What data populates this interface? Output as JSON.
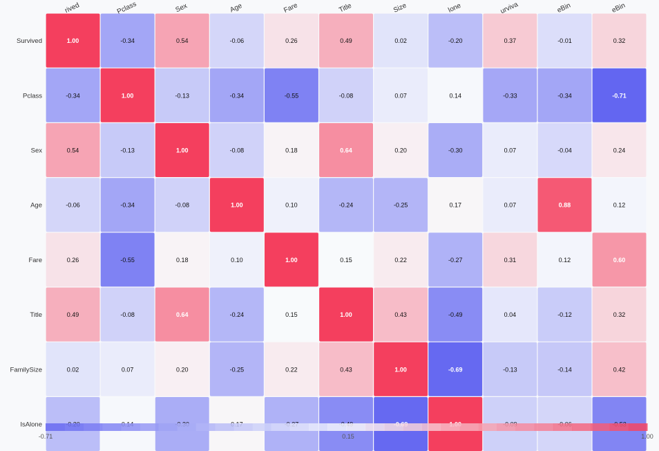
{
  "chart_data": {
    "type": "heatmap",
    "title": "",
    "columns": [
      "Survived",
      "Pclass",
      "Sex",
      "Age",
      "Fare",
      "Title",
      "FamilySize",
      "IsAlone",
      "Survival",
      "AgeBin",
      "FareBin"
    ],
    "column_labels_visible": [
      "rived",
      "Pclass",
      "Sex",
      "Age",
      "Fare",
      "Title",
      "Size",
      "lone",
      "urviva",
      "eBin",
      "eBin"
    ],
    "rows": [
      "Survived",
      "Pclass",
      "Sex",
      "Age",
      "Fare",
      "Title",
      "FamilySize",
      "IsAlone"
    ],
    "values": [
      [
        1.0,
        -0.34,
        0.54,
        -0.06,
        0.26,
        0.49,
        0.02,
        -0.2,
        0.37,
        -0.01,
        0.32
      ],
      [
        -0.34,
        1.0,
        -0.13,
        -0.34,
        -0.55,
        -0.08,
        0.07,
        0.14,
        -0.33,
        -0.34,
        -0.71
      ],
      [
        0.54,
        -0.13,
        1.0,
        -0.08,
        0.18,
        0.64,
        0.2,
        -0.3,
        0.07,
        -0.04,
        0.24
      ],
      [
        -0.06,
        -0.34,
        -0.08,
        1.0,
        0.1,
        -0.24,
        -0.25,
        0.17,
        0.07,
        0.88,
        0.12
      ],
      [
        0.26,
        -0.55,
        0.18,
        0.1,
        1.0,
        0.15,
        0.22,
        -0.27,
        0.31,
        0.12,
        0.6
      ],
      [
        0.49,
        -0.08,
        0.64,
        -0.24,
        0.15,
        1.0,
        0.43,
        -0.49,
        0.04,
        -0.12,
        0.32
      ],
      [
        0.02,
        0.07,
        0.2,
        -0.25,
        0.22,
        0.43,
        1.0,
        -0.69,
        -0.13,
        -0.14,
        0.42
      ],
      [
        -0.2,
        0.14,
        -0.3,
        0.17,
        -0.27,
        -0.49,
        -0.69,
        1.0,
        -0.09,
        -0.06,
        -0.53
      ]
    ],
    "value_labels": [
      [
        "1.00",
        "-0.34",
        "0.54",
        "-0.06",
        "0.26",
        "0.49",
        "0.02",
        "-0.20",
        "0.37",
        "-0.01",
        "0.32"
      ],
      [
        "-0.34",
        "1.00",
        "-0.13",
        "-0.34",
        "-0.55",
        "-0.08",
        "0.07",
        "0.14",
        "-0.33",
        "-0.34",
        "-0.71"
      ],
      [
        "0.54",
        "-0.13",
        "1.00",
        "-0.08",
        "0.18",
        "0.64",
        "0.20",
        "-0.30",
        "0.07",
        "-0.04",
        "0.24"
      ],
      [
        "-0.06",
        "-0.34",
        "-0.08",
        "1.00",
        "0.10",
        "-0.24",
        "-0.25",
        "0.17",
        "0.07",
        "0.88",
        "0.12"
      ],
      [
        "0.26",
        "-0.55",
        "0.18",
        "0.10",
        "1.00",
        "0.15",
        "0.22",
        "-0.27",
        "0.31",
        "0.12",
        "0.60"
      ],
      [
        "0.49",
        "-0.08",
        "0.64",
        "-0.24",
        "0.15",
        "1.00",
        "0.43",
        "-0.49",
        "0.04",
        "-0.12",
        "0.32"
      ],
      [
        "0.02",
        "0.07",
        "0.20",
        "-0.25",
        "0.22",
        "0.43",
        "1.00",
        "-0.69",
        "-0.13",
        "-0.14",
        "0.42"
      ],
      [
        "-0.20",
        "0.14",
        "-0.30",
        "0.17",
        "-0.27",
        "-0.49",
        "-0.69",
        "1.00",
        "-0.09",
        "-0.06",
        "-0.53"
      ]
    ],
    "colorscale": {
      "min": -0.71,
      "mid": 0.15,
      "max": 1.0,
      "low_color": "#6366f1",
      "mid_color": "#f8fafc",
      "high_color": "#f43f5e"
    },
    "colorbar_ticks": [
      "-0.71",
      "0.15",
      "1.00"
    ]
  }
}
